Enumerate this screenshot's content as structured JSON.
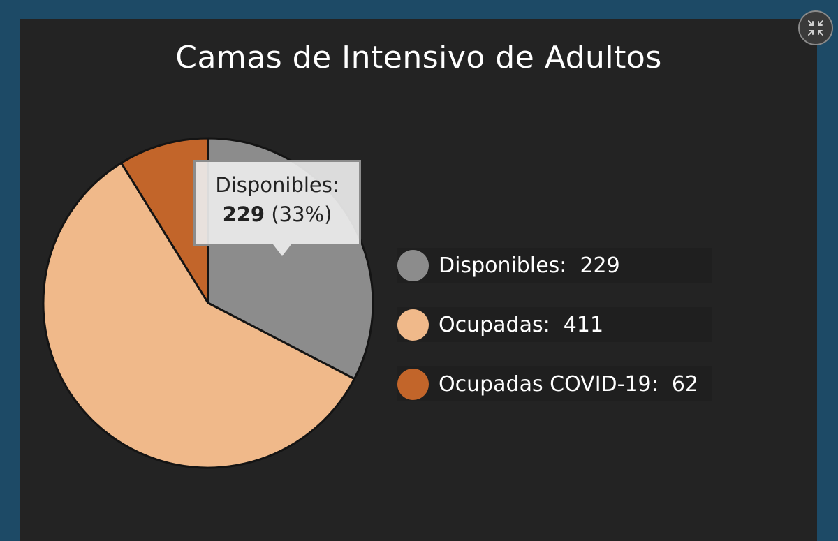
{
  "chart_data": {
    "type": "pie",
    "title": "Camas de Intensivo de Adultos",
    "categories": [
      "Disponibles",
      "Ocupadas",
      "Ocupadas COVID-19"
    ],
    "values": [
      229,
      411,
      62
    ],
    "colors": [
      "#8c8c8c",
      "#f0b98a",
      "#c2652a"
    ],
    "legend_position": "right",
    "legend": [
      {
        "label": "Disponibles:  229",
        "color": "#8c8c8c"
      },
      {
        "label": "Ocupadas:  411",
        "color": "#f0b98a"
      },
      {
        "label": "Ocupadas COVID-19:  62",
        "color": "#c2652a"
      }
    ],
    "tooltip": {
      "label": "Disponibles:",
      "value": "229",
      "percent": "(33%)"
    }
  },
  "controls": {
    "collapse_icon": "collapse-arrows-icon"
  }
}
